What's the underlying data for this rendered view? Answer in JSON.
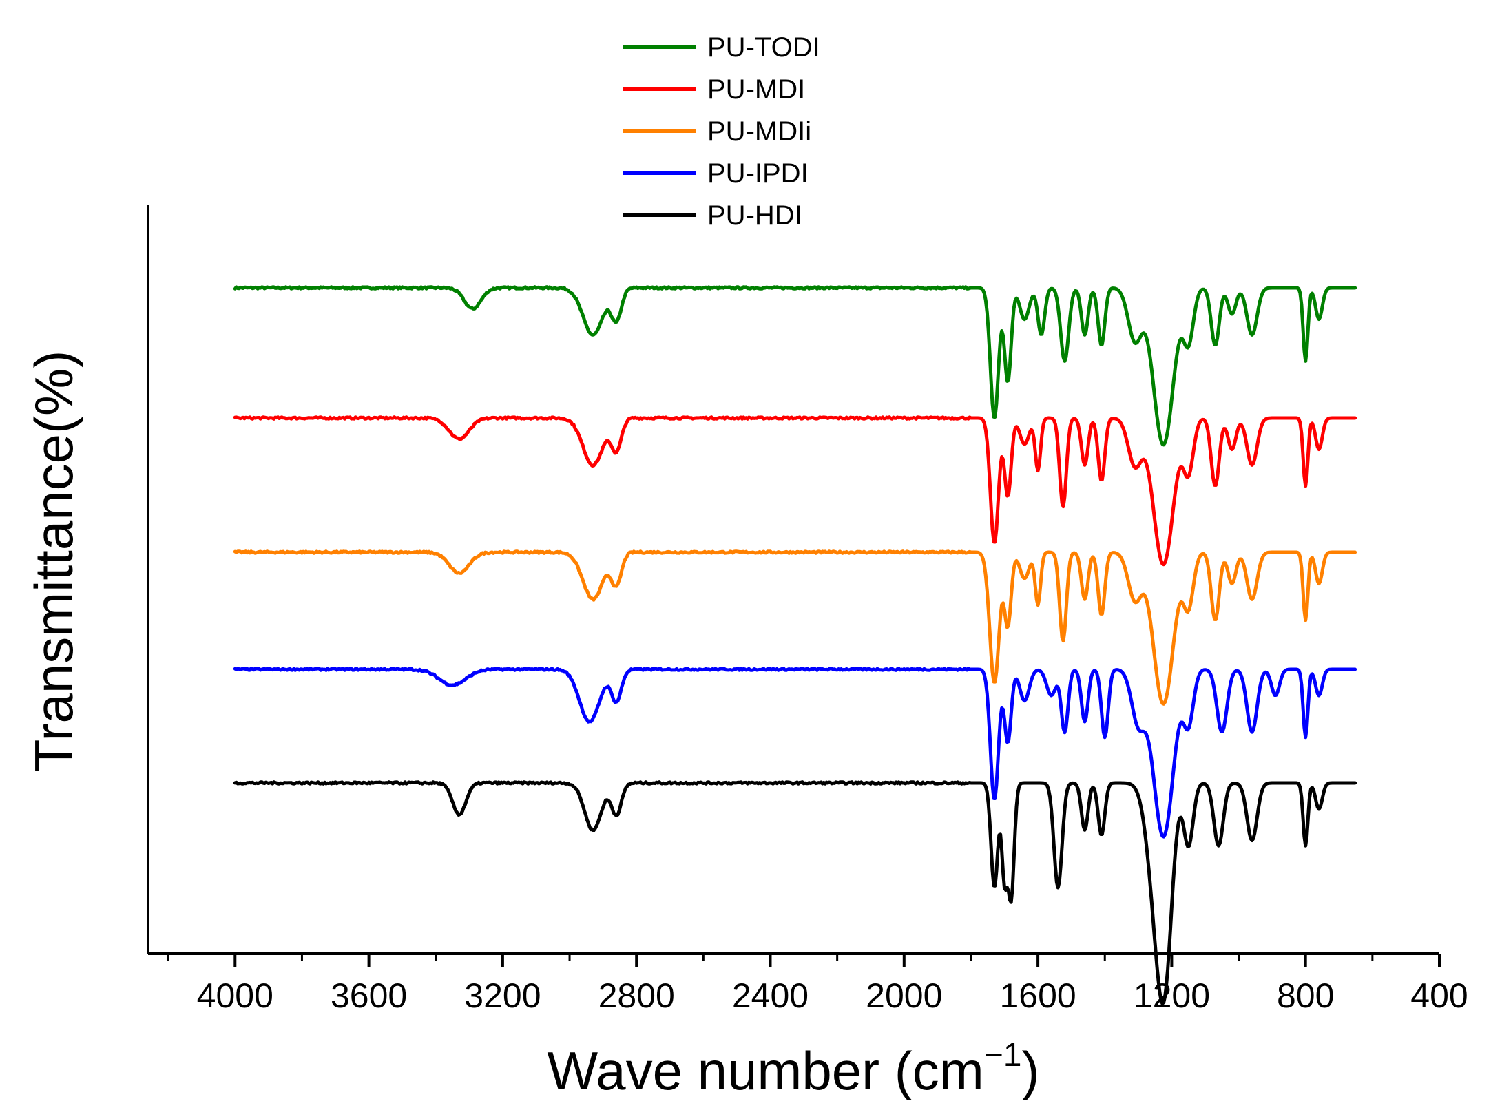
{
  "chart_data": {
    "type": "line",
    "title": "",
    "xlabel": "Wave number (cm",
    "xlabel_sup": "−1",
    "xlabel_close": ")",
    "ylabel": "Transmittance(%)",
    "xlim": [
      4260,
      400
    ],
    "x_reversed": true,
    "x_ticks": [
      "4000",
      "3600",
      "3200",
      "2800",
      "2400",
      "2000",
      "1600",
      "1200",
      "800",
      "400"
    ],
    "x_tick_values": [
      4000,
      3600,
      3200,
      2800,
      2400,
      2000,
      1600,
      1200,
      800,
      400
    ],
    "y_ticks_shown": false,
    "grid": false,
    "legend_position": "top-center",
    "series": [
      {
        "name": "PU-TODI",
        "color": "#008000",
        "baseline": 100,
        "peaks": [
          {
            "x": 3290,
            "d": 4,
            "w": 25
          },
          {
            "x": 2930,
            "d": 9,
            "w": 30
          },
          {
            "x": 2860,
            "d": 6,
            "w": 15
          },
          {
            "x": 1730,
            "d": 25,
            "w": 12
          },
          {
            "x": 1690,
            "d": 18,
            "w": 10
          },
          {
            "x": 1640,
            "d": 6,
            "w": 14
          },
          {
            "x": 1590,
            "d": 9,
            "w": 10
          },
          {
            "x": 1520,
            "d": 14,
            "w": 12
          },
          {
            "x": 1460,
            "d": 9,
            "w": 10
          },
          {
            "x": 1410,
            "d": 11,
            "w": 10
          },
          {
            "x": 1310,
            "d": 10,
            "w": 20
          },
          {
            "x": 1225,
            "d": 30,
            "w": 30
          },
          {
            "x": 1150,
            "d": 10,
            "w": 15
          },
          {
            "x": 1070,
            "d": 11,
            "w": 12
          },
          {
            "x": 1020,
            "d": 5,
            "w": 12
          },
          {
            "x": 960,
            "d": 9,
            "w": 15
          },
          {
            "x": 800,
            "d": 14,
            "w": 7
          },
          {
            "x": 760,
            "d": 6,
            "w": 10
          }
        ]
      },
      {
        "name": "PU-MDI",
        "color": "#ff0000",
        "baseline": 100,
        "peaks": [
          {
            "x": 3330,
            "d": 4,
            "w": 30
          },
          {
            "x": 2930,
            "d": 9,
            "w": 30
          },
          {
            "x": 2860,
            "d": 6,
            "w": 15
          },
          {
            "x": 1730,
            "d": 24,
            "w": 12
          },
          {
            "x": 1690,
            "d": 15,
            "w": 10
          },
          {
            "x": 1640,
            "d": 5,
            "w": 14
          },
          {
            "x": 1600,
            "d": 10,
            "w": 8
          },
          {
            "x": 1525,
            "d": 17,
            "w": 10
          },
          {
            "x": 1460,
            "d": 9,
            "w": 10
          },
          {
            "x": 1410,
            "d": 12,
            "w": 10
          },
          {
            "x": 1310,
            "d": 9,
            "w": 20
          },
          {
            "x": 1225,
            "d": 28,
            "w": 30
          },
          {
            "x": 1150,
            "d": 10,
            "w": 15
          },
          {
            "x": 1070,
            "d": 13,
            "w": 12
          },
          {
            "x": 1020,
            "d": 6,
            "w": 12
          },
          {
            "x": 960,
            "d": 9,
            "w": 15
          },
          {
            "x": 800,
            "d": 13,
            "w": 7
          },
          {
            "x": 760,
            "d": 6,
            "w": 10
          }
        ]
      },
      {
        "name": "PU-MDIi",
        "color": "#ff8000",
        "baseline": 100,
        "peaks": [
          {
            "x": 3330,
            "d": 4,
            "w": 30
          },
          {
            "x": 2930,
            "d": 9,
            "w": 30
          },
          {
            "x": 2860,
            "d": 6,
            "w": 15
          },
          {
            "x": 1730,
            "d": 25,
            "w": 14
          },
          {
            "x": 1690,
            "d": 14,
            "w": 10
          },
          {
            "x": 1640,
            "d": 5,
            "w": 14
          },
          {
            "x": 1600,
            "d": 10,
            "w": 8
          },
          {
            "x": 1525,
            "d": 17,
            "w": 10
          },
          {
            "x": 1460,
            "d": 9,
            "w": 10
          },
          {
            "x": 1410,
            "d": 12,
            "w": 10
          },
          {
            "x": 1310,
            "d": 9,
            "w": 20
          },
          {
            "x": 1225,
            "d": 29,
            "w": 30
          },
          {
            "x": 1150,
            "d": 10,
            "w": 15
          },
          {
            "x": 1070,
            "d": 13,
            "w": 12
          },
          {
            "x": 1020,
            "d": 6,
            "w": 12
          },
          {
            "x": 960,
            "d": 9,
            "w": 15
          },
          {
            "x": 800,
            "d": 13,
            "w": 7
          },
          {
            "x": 760,
            "d": 6,
            "w": 10
          }
        ]
      },
      {
        "name": "PU-IPDI",
        "color": "#0000ff",
        "baseline": 100,
        "peaks": [
          {
            "x": 3350,
            "d": 3,
            "w": 40
          },
          {
            "x": 2940,
            "d": 10,
            "w": 30
          },
          {
            "x": 2860,
            "d": 6,
            "w": 15
          },
          {
            "x": 1730,
            "d": 25,
            "w": 12
          },
          {
            "x": 1690,
            "d": 14,
            "w": 10
          },
          {
            "x": 1640,
            "d": 6,
            "w": 14
          },
          {
            "x": 1560,
            "d": 5,
            "w": 14
          },
          {
            "x": 1520,
            "d": 12,
            "w": 10
          },
          {
            "x": 1460,
            "d": 10,
            "w": 10
          },
          {
            "x": 1400,
            "d": 13,
            "w": 10
          },
          {
            "x": 1300,
            "d": 10,
            "w": 20
          },
          {
            "x": 1225,
            "d": 32,
            "w": 30
          },
          {
            "x": 1150,
            "d": 10,
            "w": 15
          },
          {
            "x": 1050,
            "d": 12,
            "w": 15
          },
          {
            "x": 960,
            "d": 12,
            "w": 15
          },
          {
            "x": 890,
            "d": 5,
            "w": 12
          },
          {
            "x": 800,
            "d": 13,
            "w": 7
          },
          {
            "x": 760,
            "d": 5,
            "w": 10
          }
        ]
      },
      {
        "name": "PU-HDI",
        "color": "#000000",
        "baseline": 100,
        "peaks": [
          {
            "x": 3330,
            "d": 6,
            "w": 20
          },
          {
            "x": 2930,
            "d": 9,
            "w": 25
          },
          {
            "x": 2860,
            "d": 6,
            "w": 15
          },
          {
            "x": 1730,
            "d": 20,
            "w": 10
          },
          {
            "x": 1700,
            "d": 18,
            "w": 8
          },
          {
            "x": 1680,
            "d": 22,
            "w": 9
          },
          {
            "x": 1540,
            "d": 20,
            "w": 12
          },
          {
            "x": 1460,
            "d": 9,
            "w": 10
          },
          {
            "x": 1410,
            "d": 10,
            "w": 10
          },
          {
            "x": 1250,
            "d": 18,
            "w": 25
          },
          {
            "x": 1220,
            "d": 32,
            "w": 22
          },
          {
            "x": 1150,
            "d": 12,
            "w": 14
          },
          {
            "x": 1060,
            "d": 12,
            "w": 14
          },
          {
            "x": 960,
            "d": 11,
            "w": 15
          },
          {
            "x": 800,
            "d": 12,
            "w": 7
          },
          {
            "x": 760,
            "d": 5,
            "w": 10
          }
        ]
      }
    ]
  }
}
